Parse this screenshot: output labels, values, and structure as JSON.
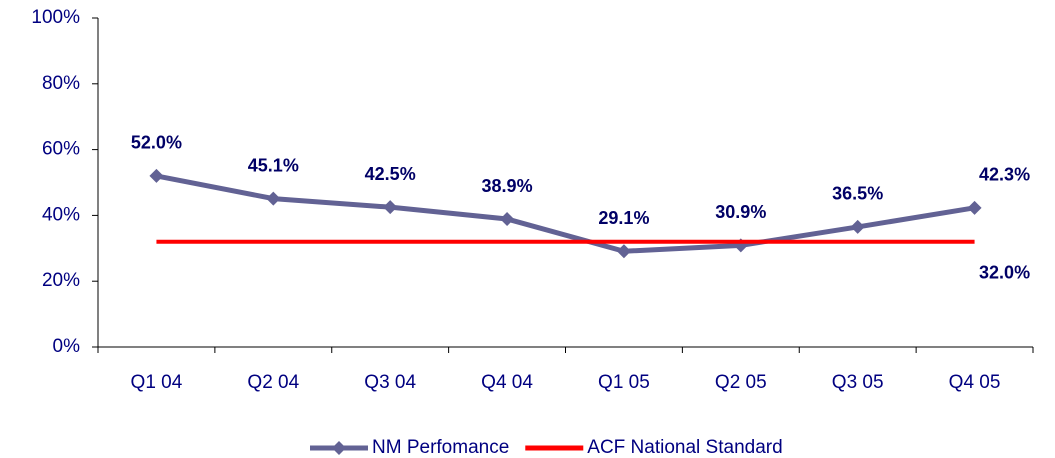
{
  "chart_data": {
    "type": "line",
    "categories": [
      "Q1 04",
      "Q2 04",
      "Q3 04",
      "Q4 04",
      "Q1 05",
      "Q2 05",
      "Q3 05",
      "Q4 05"
    ],
    "series": [
      {
        "name": "NM Perfomance",
        "color": "#626294",
        "marker": "diamond",
        "values": [
          52.0,
          45.1,
          42.5,
          38.9,
          29.1,
          30.9,
          36.5,
          42.3
        ],
        "value_labels": [
          "52.0%",
          "45.1%",
          "42.5%",
          "38.9%",
          "29.1%",
          "30.9%",
          "36.5%",
          "42.3%"
        ]
      },
      {
        "name": "ACF National Standard",
        "color": "#ff0000",
        "values": [
          32.0,
          32.0,
          32.0,
          32.0,
          32.0,
          32.0,
          32.0,
          32.0
        ],
        "value_labels": [
          null,
          null,
          null,
          null,
          null,
          null,
          null,
          "32.0%"
        ]
      }
    ],
    "ylim": [
      0,
      100
    ],
    "yticks": [
      {
        "value": 0,
        "label": "0%"
      },
      {
        "value": 20,
        "label": "20%"
      },
      {
        "value": 40,
        "label": "40%"
      },
      {
        "value": 60,
        "label": "60%"
      },
      {
        "value": 80,
        "label": "80%"
      },
      {
        "value": 100,
        "label": "100%"
      }
    ],
    "legend": "bottom"
  }
}
